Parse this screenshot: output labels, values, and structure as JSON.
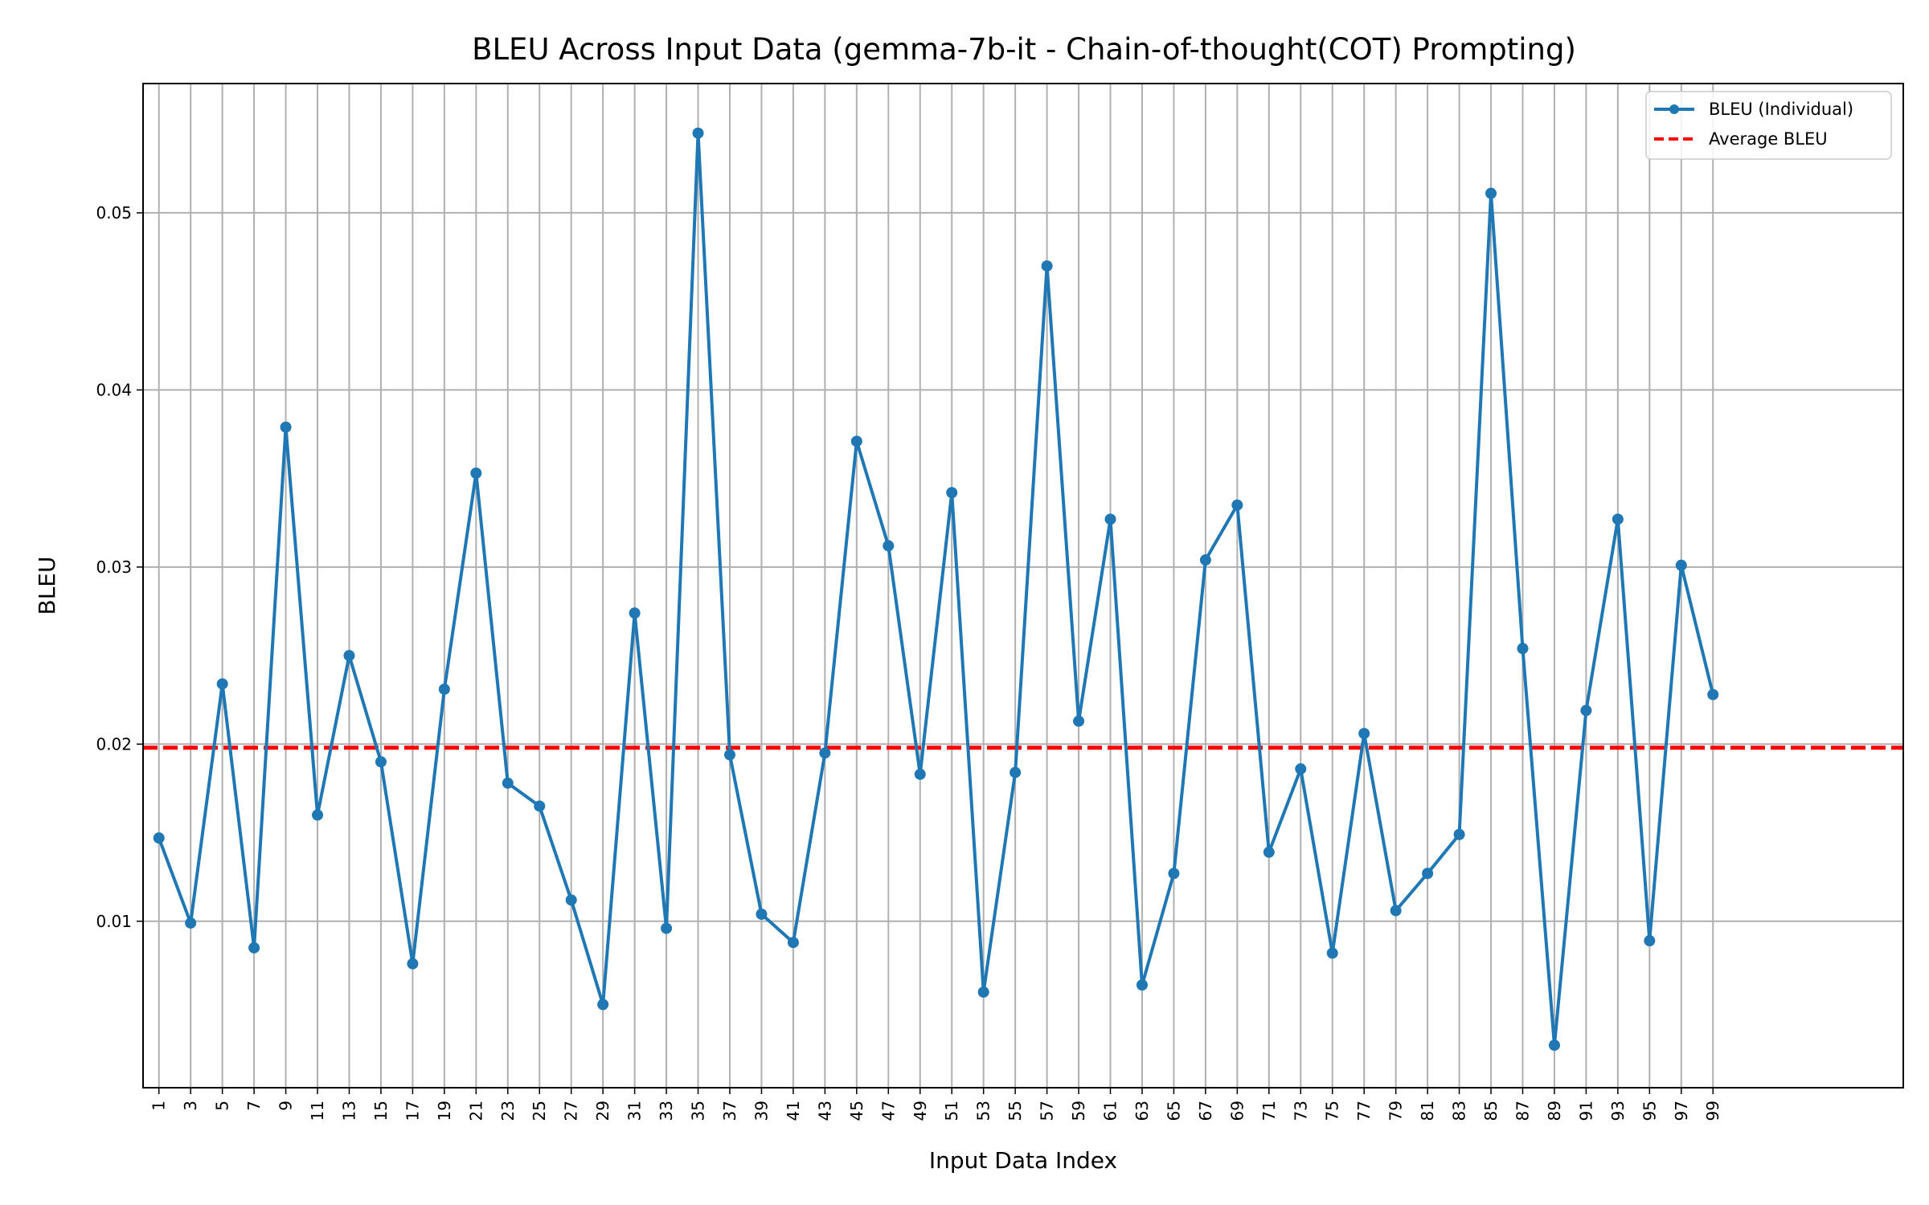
{
  "chart_data": {
    "type": "line",
    "title": "BLEU Across Input Data (gemma-7b-it - Chain-of-thought(COT) Prompting)",
    "xlabel": "Input Data Index",
    "ylabel": "BLEU",
    "xlim": [
      -0.5,
      55.0
    ],
    "ylim": [
      0.0006,
      0.0573
    ],
    "yticks": [
      0.01,
      0.02,
      0.03,
      0.04,
      0.05
    ],
    "ytick_labels": [
      "0.01",
      "0.02",
      "0.03",
      "0.04",
      "0.05"
    ],
    "categories": [
      "1",
      "3",
      "5",
      "7",
      "9",
      "11",
      "13",
      "15",
      "17",
      "19",
      "21",
      "23",
      "25",
      "27",
      "29",
      "31",
      "33",
      "35",
      "37",
      "39",
      "41",
      "43",
      "45",
      "47",
      "49",
      "51",
      "53",
      "55",
      "57",
      "59",
      "61",
      "63",
      "65",
      "67",
      "69",
      "71",
      "73",
      "75",
      "77",
      "79",
      "81",
      "83",
      "85",
      "87",
      "89",
      "91",
      "93",
      "95",
      "97",
      "99"
    ],
    "series": [
      {
        "name": "BLEU (Individual)",
        "color": "#1f77b4",
        "values": [
          0.0147,
          0.0099,
          0.0234,
          0.0085,
          0.0379,
          0.016,
          0.025,
          0.019,
          0.0076,
          0.0231,
          0.0353,
          0.0178,
          0.0165,
          0.0112,
          0.0053,
          0.0274,
          0.0096,
          0.0545,
          0.0194,
          0.0104,
          0.0088,
          0.0195,
          0.0371,
          0.0312,
          0.0183,
          0.0342,
          0.006,
          0.0184,
          0.047,
          0.0213,
          0.0327,
          0.0064,
          0.0127,
          0.0304,
          0.0335,
          0.0139,
          0.0186,
          0.0082,
          0.0206,
          0.0106,
          0.0127,
          0.0149,
          0.0511,
          0.0254,
          0.003,
          0.0219,
          0.0327,
          0.0089,
          0.0301,
          0.0228
        ]
      }
    ],
    "average": {
      "name": "Average BLEU",
      "value": 0.0198,
      "color": "#ff0000"
    },
    "grid": true,
    "legend_position": "top-right"
  }
}
